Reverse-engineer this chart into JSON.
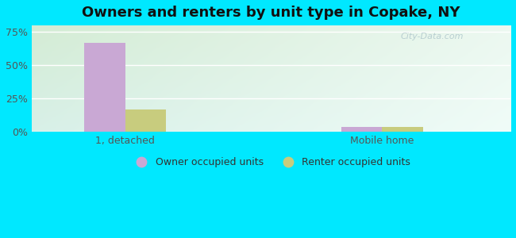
{
  "title": "Owners and renters by unit type in Copake, NY",
  "categories": [
    "1, detached",
    "Mobile home"
  ],
  "owner_values": [
    67.0,
    4.0
  ],
  "renter_values": [
    17.0,
    4.0
  ],
  "owner_color": "#c9a8d4",
  "renter_color": "#c8cc7e",
  "outer_bg": "#00e8ff",
  "yticks": [
    0,
    25,
    50,
    75
  ],
  "ylim": [
    0,
    80
  ],
  "bar_width": 0.35,
  "legend_labels": [
    "Owner occupied units",
    "Renter occupied units"
  ],
  "watermark": "City-Data.com",
  "title_fontsize": 13,
  "tick_fontsize": 9,
  "legend_fontsize": 9,
  "x_positions": [
    1.0,
    3.2
  ]
}
